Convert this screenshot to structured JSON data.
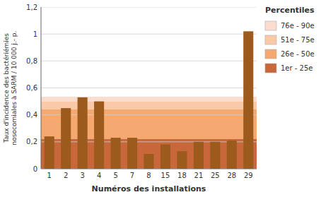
{
  "chart_data": {
    "type": "bar",
    "categories": [
      "1",
      "2",
      "3",
      "4",
      "5",
      "7",
      "8",
      "15",
      "18",
      "21",
      "25",
      "28",
      "29"
    ],
    "values": [
      0.24,
      0.45,
      0.53,
      0.5,
      0.23,
      0.23,
      0.11,
      0.18,
      0.13,
      0.2,
      0.2,
      0.21,
      1.02
    ],
    "color": "#9C5A1D",
    "xlabel": "Numéros des installations",
    "ylabel": "Taux d'incidence des bactériémies\nnosocomiales à SARM / 10 000 j.- p.",
    "ylim": [
      0,
      1.2
    ],
    "yticks": [
      0,
      {
        "value": 0.2,
        "label": "0,2"
      },
      {
        "value": 0.4,
        "label": "0,4"
      },
      {
        "value": 0.6,
        "label": "0,6"
      },
      {
        "value": 0.8,
        "label": "0,8"
      },
      1,
      {
        "value": 1.2,
        "label": "1,2"
      }
    ],
    "grid": true,
    "legend": "right",
    "legend_title": "Percentiles",
    "bands": [
      {
        "name": "76e - 90e",
        "color": "#FBDDD0",
        "from": 0.5,
        "to": 0.535
      },
      {
        "name": "51e - 75e",
        "color": "#F9C9A8",
        "from": 0.44,
        "to": 0.5
      },
      {
        "name": "26e - 50e",
        "color": "#F5A870",
        "from": 0.22,
        "to": 0.44
      },
      {
        "name": "1er - 25e",
        "color": "#C8683A",
        "from": 0.0,
        "to": 0.22
      }
    ]
  }
}
